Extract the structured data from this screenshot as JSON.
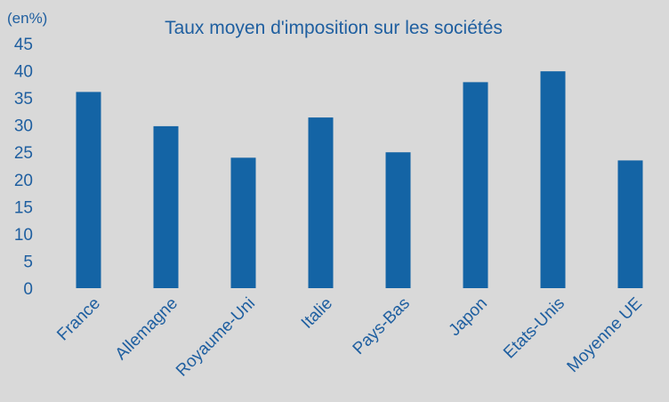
{
  "chart_data": {
    "type": "bar",
    "title": "Taux  moyen d'imposition sur les sociétés",
    "unit_label": "(en%)",
    "xlabel": "",
    "ylabel": "",
    "categories": [
      "France",
      "Allemagne",
      "Royaume-Uni",
      "Italie",
      "Pays-Bas",
      "Japon",
      "Etats-Unis",
      "Moyenne UE"
    ],
    "values": [
      36.1,
      29.8,
      24.0,
      31.4,
      25.0,
      37.9,
      39.9,
      23.5
    ],
    "ylim": [
      0,
      45
    ],
    "yticks": [
      "0",
      "5",
      "10",
      "15",
      "20",
      "25",
      "30",
      "35",
      "40",
      "45"
    ],
    "grid": false,
    "legend": "none",
    "bar_color": "#1464a5"
  }
}
